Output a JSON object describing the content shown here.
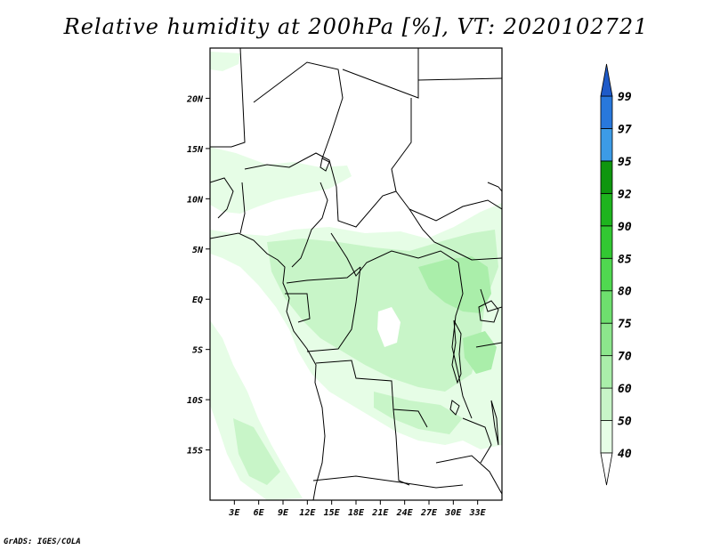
{
  "title": "Relative humidity at 200hPa [%], VT: 2020102721",
  "credit": "GrADS: IGES/COLA",
  "map": {
    "lon_range": [
      0,
      36
    ],
    "lat_range": [
      -20,
      25
    ],
    "lon_ticks": [
      {
        "value": 3,
        "label": "3E"
      },
      {
        "value": 6,
        "label": "6E"
      },
      {
        "value": 9,
        "label": "9E"
      },
      {
        "value": 12,
        "label": "12E"
      },
      {
        "value": 15,
        "label": "15E"
      },
      {
        "value": 18,
        "label": "18E"
      },
      {
        "value": 21,
        "label": "21E"
      },
      {
        "value": 24,
        "label": "24E"
      },
      {
        "value": 27,
        "label": "27E"
      },
      {
        "value": 30,
        "label": "30E"
      },
      {
        "value": 33,
        "label": "33E"
      }
    ],
    "lat_ticks": [
      {
        "value": 20,
        "label": "20N"
      },
      {
        "value": 15,
        "label": "15N"
      },
      {
        "value": 10,
        "label": "10N"
      },
      {
        "value": 5,
        "label": "5N"
      },
      {
        "value": 0,
        "label": "EQ"
      },
      {
        "value": -5,
        "label": "5S"
      },
      {
        "value": -10,
        "label": "10S"
      },
      {
        "value": -15,
        "label": "15S"
      }
    ]
  },
  "colorbar": {
    "levels": [
      "40",
      "50",
      "60",
      "70",
      "75",
      "80",
      "85",
      "90",
      "92",
      "95",
      "97",
      "99"
    ],
    "colors": [
      "#e6fde6",
      "#c8f5c8",
      "#aaeeaa",
      "#8ce68c",
      "#6edf6e",
      "#50d850",
      "#32c832",
      "#1eb41e",
      "#0f960f",
      "#3c9be6",
      "#2878dc",
      "#1e5ac8"
    ],
    "below_color": "#ffffff"
  },
  "shading_colors": {
    "light": "#e6fde6",
    "mid": "#c8f5c8",
    "strong": "#aaeeaa"
  }
}
